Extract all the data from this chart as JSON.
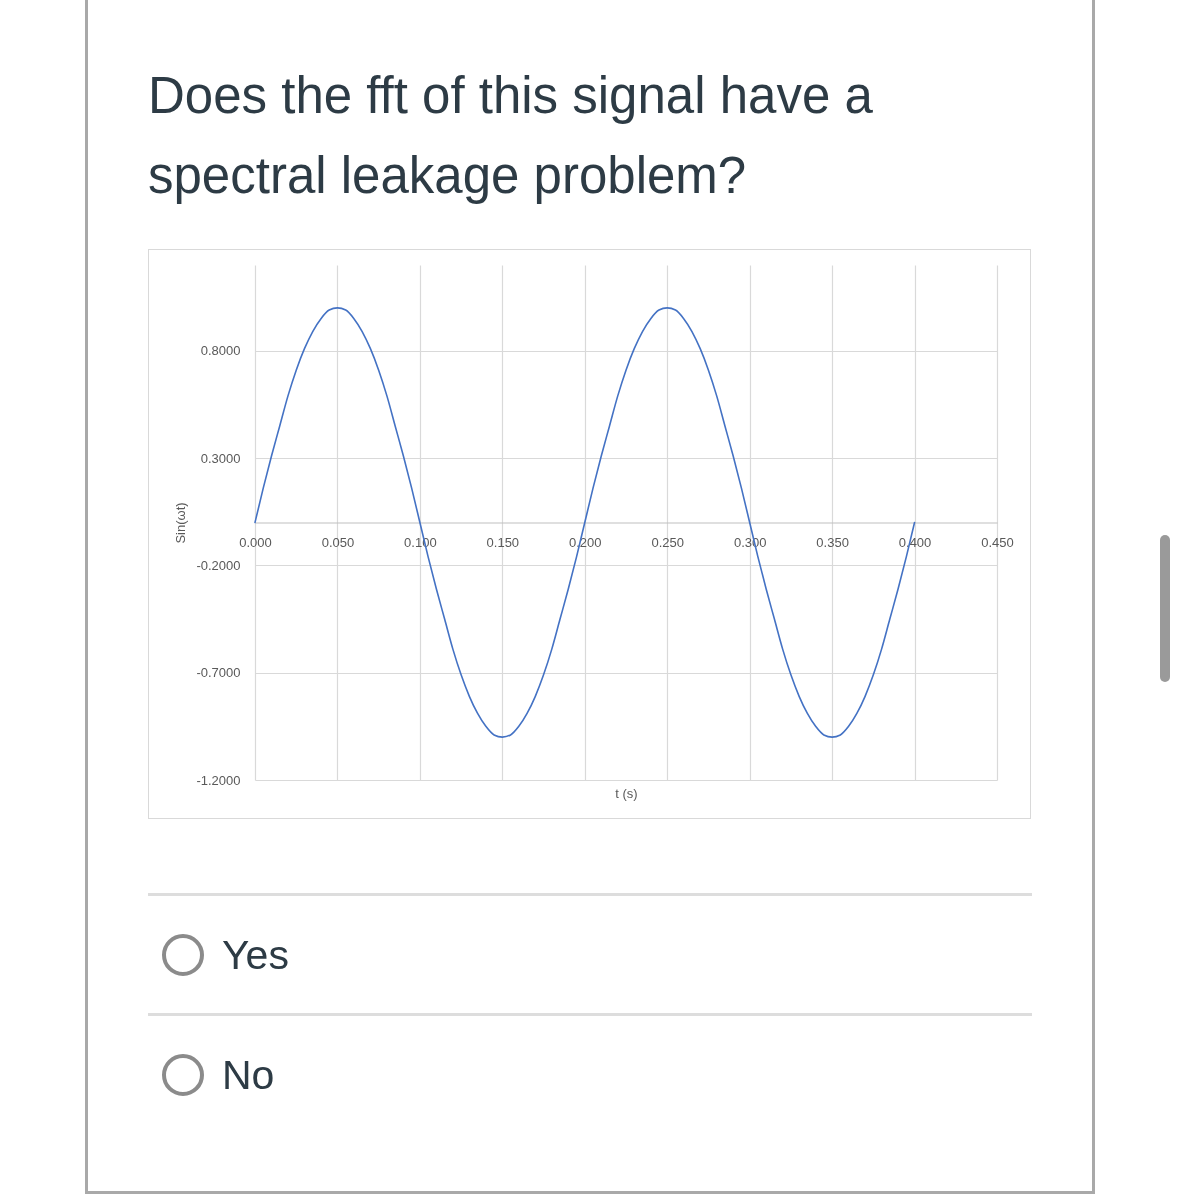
{
  "chart_data": {
    "type": "line",
    "title": "Does the fft of this signal have a spectral leakage problem?",
    "xlabel": "t (s)",
    "ylabel": "Sin(ωt)",
    "x": [
      0,
      0.005,
      0.01,
      0.015,
      0.02,
      0.025,
      0.03,
      0.035,
      0.04,
      0.045,
      0.05,
      0.055,
      0.06,
      0.065,
      0.07,
      0.075,
      0.08,
      0.085,
      0.09,
      0.095,
      0.1,
      0.105,
      0.11,
      0.115,
      0.12,
      0.125,
      0.13,
      0.135,
      0.14,
      0.145,
      0.15,
      0.155,
      0.16,
      0.165,
      0.17,
      0.175,
      0.18,
      0.185,
      0.19,
      0.195,
      0.2,
      0.205,
      0.21,
      0.215,
      0.22,
      0.225,
      0.23,
      0.235,
      0.24,
      0.245,
      0.25,
      0.255,
      0.26,
      0.265,
      0.27,
      0.275,
      0.28,
      0.285,
      0.29,
      0.295,
      0.3,
      0.305,
      0.31,
      0.315,
      0.32,
      0.325,
      0.33,
      0.335,
      0.34,
      0.345,
      0.35,
      0.355,
      0.36,
      0.365,
      0.37,
      0.375,
      0.38,
      0.385,
      0.39,
      0.395,
      0.4
    ],
    "series": [
      {
        "color": "#4472c4",
        "values": [
          0,
          0.16,
          0.31,
          0.45,
          0.59,
          0.71,
          0.81,
          0.89,
          0.95,
          0.99,
          1.0,
          0.99,
          0.95,
          0.89,
          0.81,
          0.71,
          0.59,
          0.45,
          0.31,
          0.16,
          0,
          -0.16,
          -0.31,
          -0.45,
          -0.59,
          -0.71,
          -0.81,
          -0.89,
          -0.95,
          -0.99,
          -1.0,
          -0.99,
          -0.95,
          -0.89,
          -0.81,
          -0.71,
          -0.59,
          -0.45,
          -0.31,
          -0.16,
          0,
          0.16,
          0.31,
          0.45,
          0.59,
          0.71,
          0.81,
          0.89,
          0.95,
          0.99,
          1.0,
          0.99,
          0.95,
          0.89,
          0.81,
          0.71,
          0.59,
          0.45,
          0.31,
          0.16,
          0,
          -0.16,
          -0.31,
          -0.45,
          -0.59,
          -0.71,
          -0.81,
          -0.89,
          -0.95,
          -0.99,
          -1.0,
          -0.99,
          -0.95,
          -0.89,
          -0.81,
          -0.71,
          -0.59,
          -0.45,
          -0.31,
          -0.16,
          0
        ]
      }
    ],
    "xlim": [
      0,
      0.45
    ],
    "xticks": [
      {
        "value": 0,
        "label": "0.000"
      },
      {
        "value": 0.05,
        "label": "0.050"
      },
      {
        "value": 0.1,
        "label": "0.100"
      },
      {
        "value": 0.15,
        "label": "0.150"
      },
      {
        "value": 0.2,
        "label": "0.200"
      },
      {
        "value": 0.25,
        "label": "0.250"
      },
      {
        "value": 0.3,
        "label": "0.300"
      },
      {
        "value": 0.35,
        "label": "0.350"
      },
      {
        "value": 0.4,
        "label": "0.400"
      },
      {
        "value": 0.45,
        "label": "0.450"
      }
    ],
    "ylim": [
      -1.2,
      1.2
    ],
    "yticks": [
      {
        "value": -1.2,
        "label": "-1.2000"
      },
      {
        "value": -0.7,
        "label": "-0.7000"
      },
      {
        "value": -0.2,
        "label": "-0.2000"
      },
      {
        "value": 0.3,
        "label": "0.3000"
      },
      {
        "value": 0.8,
        "label": "0.8000"
      }
    ],
    "grid": true,
    "annotations": [
      "Yes",
      "No"
    ]
  }
}
